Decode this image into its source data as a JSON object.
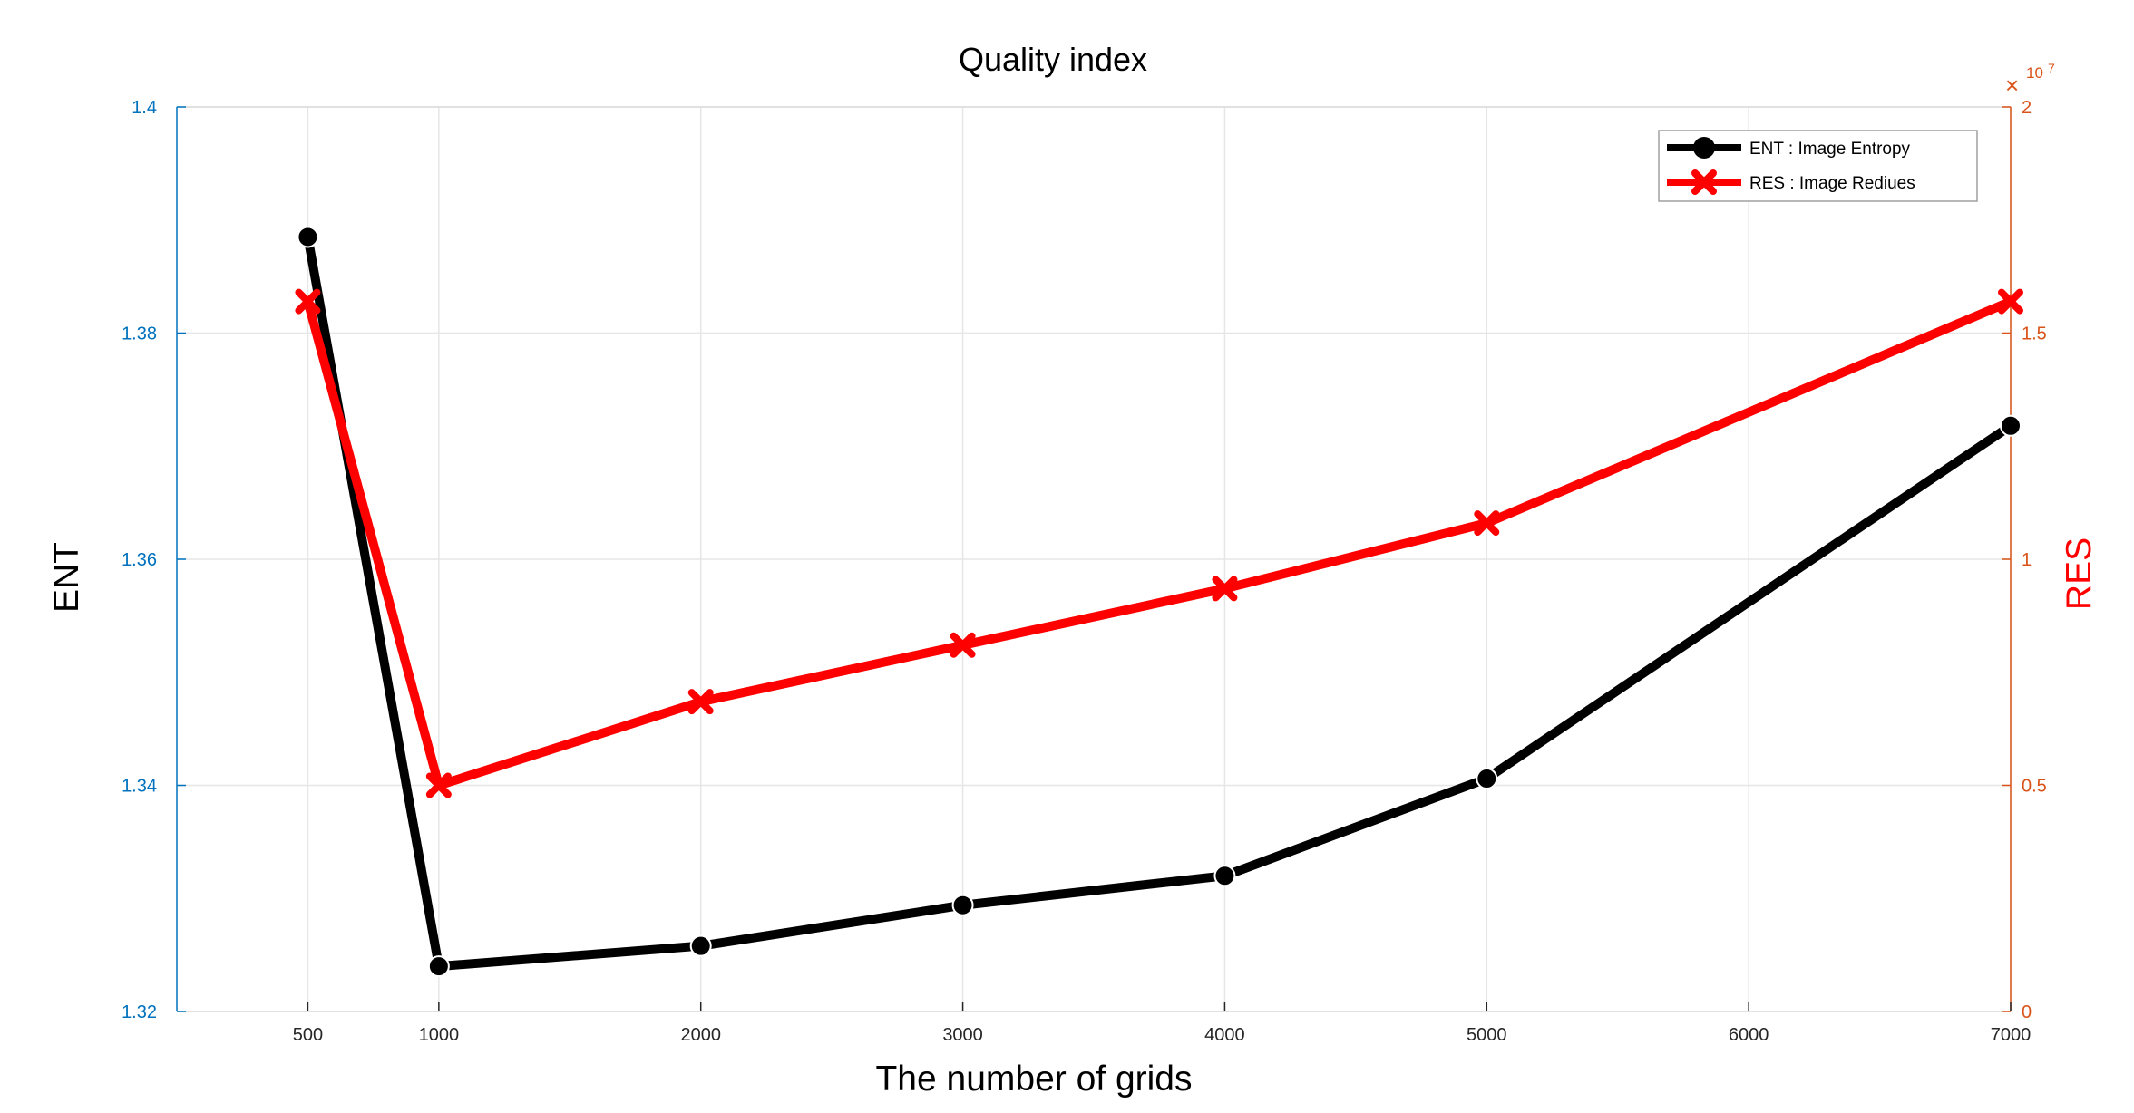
{
  "chart_data": {
    "type": "line",
    "title": "Quality index",
    "xlabel": "The number of grids",
    "ylabel_left": "ENT",
    "ylabel_right": "RES",
    "x": [
      500,
      1000,
      2000,
      3000,
      4000,
      5000,
      7000
    ],
    "x_ticks": [
      500,
      1000,
      2000,
      3000,
      4000,
      5000,
      6000,
      7000
    ],
    "x_tick_labels": [
      "500",
      "1000",
      "2000",
      "3000",
      "4000",
      "5000",
      "6000",
      "7000"
    ],
    "xlim": [
      0,
      7000
    ],
    "y_left": {
      "lim": [
        1.32,
        1.4
      ],
      "ticks": [
        1.32,
        1.34,
        1.36,
        1.38,
        1.4
      ],
      "tick_labels": [
        "1.32",
        "1.34",
        "1.36",
        "1.38",
        "1.4"
      ],
      "color": "#0072BD"
    },
    "y_right": {
      "lim": [
        0,
        2
      ],
      "ticks": [
        0,
        0.5,
        1,
        1.5,
        2
      ],
      "tick_labels": [
        "0",
        "0.5",
        "1",
        "1.5",
        "2"
      ],
      "exponent_base": "10",
      "exponent_power": "7",
      "exponent_symbol": "×",
      "color": "#D95319"
    },
    "grid": true,
    "legend_position": "top-right",
    "series": [
      {
        "name": "ENT : Image Entropy",
        "axis": "left",
        "color": "#000000",
        "marker": "circle",
        "values": [
          1.3885,
          1.324,
          1.3258,
          1.3294,
          1.332,
          1.3406,
          1.3718
        ]
      },
      {
        "name": "RES : Image Rediues",
        "axis": "right",
        "color": "#FF0000",
        "ylabel_color": "#FF0000",
        "marker": "x",
        "values": [
          1.57,
          0.5,
          0.685,
          0.81,
          0.935,
          1.08,
          1.57
        ]
      }
    ]
  }
}
